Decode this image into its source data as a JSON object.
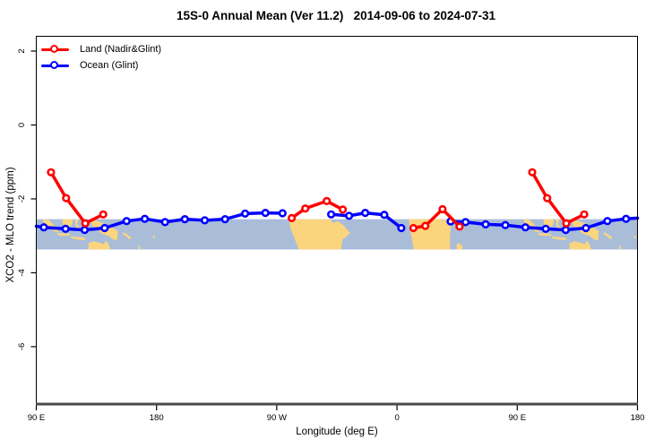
{
  "title": "15S-0 Annual Mean (Ver 11.2)   2014-09-06 to 2024-07-31",
  "legend": {
    "items": [
      {
        "label": "Land (Nadir&Glint)",
        "color": "#ff0000"
      },
      {
        "label": "Ocean (Glint)",
        "color": "#0000ff"
      }
    ]
  },
  "axes": {
    "xlabel": "Longitude (deg E)",
    "ylabel": "XCO2 - MLO trend (ppm)"
  },
  "chart_data": {
    "type": "line",
    "title": "15S-0 Annual Mean (Ver 11.2)   2014-09-06 to 2024-07-31",
    "xlabel": "Longitude (deg E)",
    "ylabel": "XCO2 - MLO trend (ppm)",
    "xlim": [
      90,
      540
    ],
    "ylim": [
      -7.53,
      2.4
    ],
    "grid": false,
    "legend_position": "top-left",
    "x_ticks": [
      {
        "value": 90,
        "label": "90 E"
      },
      {
        "value": 180,
        "label": "180"
      },
      {
        "value": 270,
        "label": "90 W"
      },
      {
        "value": 360,
        "label": "0"
      },
      {
        "value": 450,
        "label": "90 E"
      },
      {
        "value": 540,
        "label": "180"
      }
    ],
    "y_ticks": [
      {
        "value": 2,
        "label": "2"
      },
      {
        "value": 0,
        "label": "0"
      },
      {
        "value": -2,
        "label": "-2"
      },
      {
        "value": -4,
        "label": "-4"
      },
      {
        "value": -6,
        "label": "-6"
      }
    ],
    "series": [
      {
        "name": "Ocean (Glint)",
        "color": "#0000ff",
        "marker": "open-circle",
        "segments": [
          {
            "x": [
              90,
              95.6,
              111.9,
              126.2,
              141.2,
              157.6,
              171.2,
              186.4,
              201.2,
              216.1,
              231.3,
              246.3,
              261.5,
              274.3
            ],
            "y": [
              -2.74,
              -2.77,
              -2.81,
              -2.84,
              -2.79,
              -2.6,
              -2.54,
              -2.63,
              -2.55,
              -2.58,
              -2.55,
              -2.4,
              -2.38,
              -2.39
            ],
            "no_marker_first": true,
            "no_marker_last": false
          },
          {
            "x": [
              310.7,
              324.1,
              336.2,
              350.5,
              363.2
            ],
            "y": [
              -2.42,
              -2.46,
              -2.38,
              -2.43,
              -2.79
            ],
            "no_marker_first": false,
            "no_marker_last": false
          },
          {
            "x": [
              400.1,
              411.3,
              426.3,
              441.1,
              456.1,
              471.3,
              486.3,
              501.4,
              517.5,
              531.4,
              540
            ],
            "y": [
              -2.61,
              -2.63,
              -2.69,
              -2.71,
              -2.77,
              -2.81,
              -2.84,
              -2.79,
              -2.6,
              -2.54,
              -2.52
            ],
            "no_marker_first": false,
            "no_marker_last": true
          }
        ]
      },
      {
        "name": "Land (Nadir&Glint)",
        "color": "#ff0000",
        "marker": "open-circle",
        "segments": [
          {
            "x": [
              101,
              112.3,
              126.7,
              140.1
            ],
            "y": [
              -1.28,
              -1.98,
              -2.66,
              -2.42
            ],
            "no_marker_first": false,
            "no_marker_last": false
          },
          {
            "x": [
              281.2,
              291.3,
              307.4,
              319.4
            ],
            "y": [
              -2.52,
              -2.26,
              -2.06,
              -2.29
            ],
            "no_marker_first": false,
            "no_marker_last": false
          },
          {
            "x": [
              372.3,
              381.2,
              394.1,
              406.8
            ],
            "y": [
              -2.79,
              -2.73,
              -2.28,
              -2.75
            ],
            "no_marker_first": false,
            "no_marker_last": false
          },
          {
            "x": [
              461.2,
              472.4,
              486.7,
              500.1
            ],
            "y": [
              -1.28,
              -1.98,
              -2.66,
              -2.42
            ],
            "no_marker_first": false,
            "no_marker_last": false
          }
        ]
      }
    ],
    "map_band": {
      "ocean_color": "#a9bdd9",
      "land_color": "#fbd47e",
      "top_value": -2.55,
      "bottom_value": -3.37,
      "lat_range": [
        0,
        15
      ],
      "repeat_offset": 360,
      "lands": [
        {
          "name": "sumatra",
          "repeat": true,
          "pts": [
            [
              95,
              0
            ],
            [
              99.5,
              0.5
            ],
            [
              106,
              5
            ],
            [
              106.5,
              6.5
            ],
            [
              103.5,
              6
            ],
            [
              97,
              2.5
            ],
            [
              95,
              1
            ]
          ]
        },
        {
          "name": "java",
          "repeat": true,
          "pts": [
            [
              105.5,
              6.8
            ],
            [
              114.5,
              7.2
            ],
            [
              116,
              8.2
            ],
            [
              108,
              8.2
            ],
            [
              105.5,
              7.5
            ]
          ]
        },
        {
          "name": "borneo",
          "repeat": true,
          "pts": [
            [
              109.5,
              0
            ],
            [
              117.5,
              0
            ],
            [
              116.5,
              3.2
            ],
            [
              113,
              4.2
            ],
            [
              110,
              2.8
            ]
          ]
        },
        {
          "name": "sulawesi",
          "repeat": true,
          "pts": [
            [
              119,
              0
            ],
            [
              121.5,
              0
            ],
            [
              120.5,
              2.5
            ],
            [
              123.5,
              5.5
            ],
            [
              121,
              5.7
            ],
            [
              119.5,
              3
            ]
          ]
        },
        {
          "name": "lesser-sunda",
          "repeat": true,
          "pts": [
            [
              116,
              8.6
            ],
            [
              121,
              8.8
            ],
            [
              126.5,
              9.2
            ],
            [
              126.3,
              10.4
            ],
            [
              119,
              9.9
            ],
            [
              116,
              9.4
            ]
          ]
        },
        {
          "name": "new-guinea",
          "repeat": true,
          "pts": [
            [
              131,
              0
            ],
            [
              136,
              1
            ],
            [
              141,
              2.2
            ],
            [
              146,
              3.8
            ],
            [
              151,
              5.8
            ],
            [
              150.5,
              10.5
            ],
            [
              147.5,
              10
            ],
            [
              144,
              8.2
            ],
            [
              139,
              7.2
            ],
            [
              135,
              4.5
            ],
            [
              131.5,
              3
            ]
          ]
        },
        {
          "name": "n-australia",
          "repeat": true,
          "pts": [
            [
              129,
              11.8
            ],
            [
              133,
              11
            ],
            [
              137,
              11.5
            ],
            [
              140.5,
              12.5
            ],
            [
              141.8,
              10.8
            ],
            [
              143.5,
              11.5
            ],
            [
              145.5,
              15
            ],
            [
              129,
              15
            ]
          ]
        },
        {
          "name": "solomon-is",
          "repeat": true,
          "pts": [
            [
              155,
              6.5
            ],
            [
              158,
              7.5
            ],
            [
              161,
              9.2
            ],
            [
              160,
              10
            ],
            [
              156.5,
              8.2
            ],
            [
              154.5,
              7.2
            ]
          ]
        },
        {
          "name": "vanuatu",
          "repeat": true,
          "pts": [
            [
              166.5,
              13
            ],
            [
              167.6,
              13
            ],
            [
              167.6,
              15
            ],
            [
              166.5,
              15
            ]
          ]
        },
        {
          "name": "fiji",
          "repeat": true,
          "pts": [
            [
              177.5,
              8
            ],
            [
              179,
              8.5
            ],
            [
              178.5,
              9.5
            ],
            [
              177,
              9
            ]
          ]
        },
        {
          "name": "south-america",
          "repeat": false,
          "pts": [
            [
              279.5,
              0
            ],
            [
              310,
              0
            ],
            [
              312,
              1.8
            ],
            [
              315.5,
              1
            ],
            [
              319.5,
              2.8
            ],
            [
              325,
              6.8
            ],
            [
              322,
              8.8
            ],
            [
              319.3,
              9.8
            ],
            [
              318.6,
              13
            ],
            [
              318,
              15
            ],
            [
              286.5,
              15
            ],
            [
              283,
              9
            ],
            [
              280,
              4
            ]
          ]
        },
        {
          "name": "africa",
          "repeat": false,
          "pts": [
            [
              369,
              0
            ],
            [
              401.5,
              0
            ],
            [
              400.3,
              4
            ],
            [
              399.5,
              9
            ],
            [
              399.8,
              15
            ],
            [
              372.5,
              15
            ],
            [
              371,
              9
            ],
            [
              369.3,
              4
            ]
          ]
        },
        {
          "name": "madagascar",
          "repeat": false,
          "pts": [
            [
              404.5,
              12.5
            ],
            [
              406.5,
              11.8
            ],
            [
              409.3,
              13.5
            ],
            [
              408.8,
              15
            ],
            [
              404.8,
              15
            ]
          ]
        }
      ]
    },
    "style": {
      "box_color": "#000000",
      "bottom_axis_color": "#4a4a4a",
      "line_width": 3.5,
      "marker_radius": 3.3,
      "marker_stroke": 2.6
    }
  }
}
